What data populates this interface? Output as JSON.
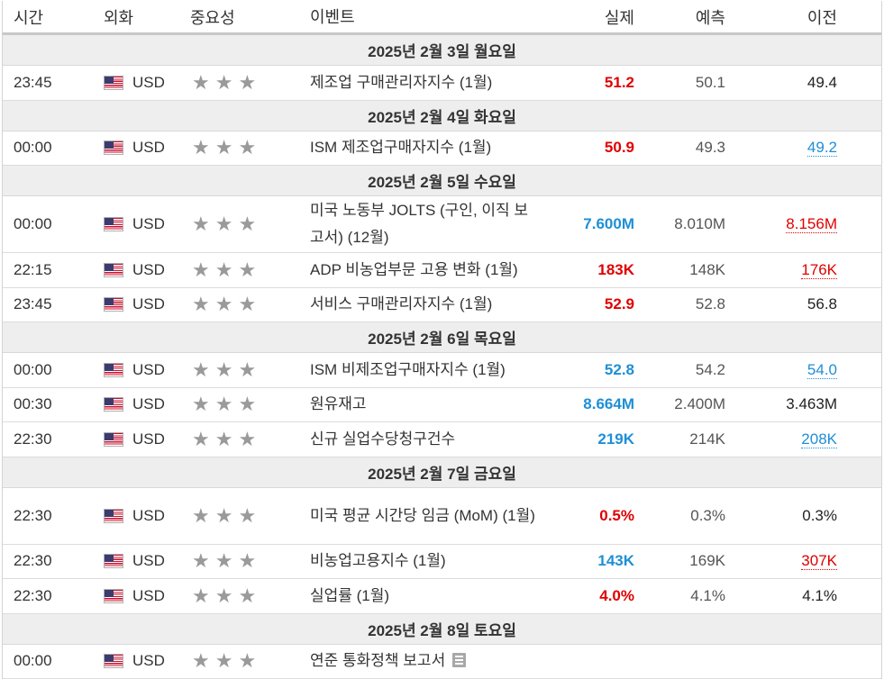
{
  "header": {
    "time": "시간",
    "currency": "외화",
    "importance": "중요성",
    "event": "이벤트",
    "actual": "실제",
    "forecast": "예측",
    "previous": "이전"
  },
  "colors": {
    "positive": "#1e8fd6",
    "negative": "#e00000",
    "day_bg": "#eeeeee"
  },
  "days": [
    {
      "label": "2025년 2월 3일 월요일",
      "events": [
        {
          "time": "23:45",
          "currency": "USD",
          "event": "제조업 구매관리자지수 (1월)",
          "actual": "51.2",
          "actual_color": "red",
          "forecast": "50.1",
          "previous": "49.4",
          "previous_style": "plain"
        }
      ]
    },
    {
      "label": "2025년 2월 4일 화요일",
      "events": [
        {
          "time": "00:00",
          "currency": "USD",
          "event": "ISM 제조업구매자지수 (1월)",
          "actual": "50.9",
          "actual_color": "red",
          "forecast": "49.3",
          "previous": "49.2",
          "previous_style": "blue"
        }
      ]
    },
    {
      "label": "2025년 2월 5일 수요일",
      "events": [
        {
          "time": "00:00",
          "currency": "USD",
          "event": "미국 노동부 JOLTS (구인, 이직 보고서) (12월)",
          "actual": "7.600M",
          "actual_color": "blue",
          "forecast": "8.010M",
          "previous": "8.156M",
          "previous_style": "red",
          "tall": true
        },
        {
          "time": "22:15",
          "currency": "USD",
          "event": "ADP 비농업부문 고용 변화 (1월)",
          "actual": "183K",
          "actual_color": "red",
          "forecast": "148K",
          "previous": "176K",
          "previous_style": "red"
        },
        {
          "time": "23:45",
          "currency": "USD",
          "event": "서비스 구매관리자지수 (1월)",
          "actual": "52.9",
          "actual_color": "red",
          "forecast": "52.8",
          "previous": "56.8",
          "previous_style": "plain"
        }
      ]
    },
    {
      "label": "2025년 2월 6일 목요일",
      "events": [
        {
          "time": "00:00",
          "currency": "USD",
          "event": "ISM 비제조업구매자지수 (1월)",
          "actual": "52.8",
          "actual_color": "blue",
          "forecast": "54.2",
          "previous": "54.0",
          "previous_style": "blue"
        },
        {
          "time": "00:30",
          "currency": "USD",
          "event": "원유재고",
          "actual": "8.664M",
          "actual_color": "blue",
          "forecast": "2.400M",
          "previous": "3.463M",
          "previous_style": "plain"
        },
        {
          "time": "22:30",
          "currency": "USD",
          "event": "신규 실업수당청구건수",
          "actual": "219K",
          "actual_color": "blue",
          "forecast": "214K",
          "previous": "208K",
          "previous_style": "blue"
        }
      ]
    },
    {
      "label": "2025년 2월 7일 금요일",
      "events": [
        {
          "time": "22:30",
          "currency": "USD",
          "event": "미국 평균 시간당 임금 (MoM) (1월)",
          "actual": "0.5%",
          "actual_color": "red",
          "forecast": "0.3%",
          "previous": "0.3%",
          "previous_style": "plain",
          "tall": true
        },
        {
          "time": "22:30",
          "currency": "USD",
          "event": "비농업고용지수 (1월)",
          "actual": "143K",
          "actual_color": "blue",
          "forecast": "169K",
          "previous": "307K",
          "previous_style": "red"
        },
        {
          "time": "22:30",
          "currency": "USD",
          "event": "실업률 (1월)",
          "actual": "4.0%",
          "actual_color": "red",
          "forecast": "4.1%",
          "previous": "4.1%",
          "previous_style": "plain"
        }
      ]
    },
    {
      "label": "2025년 2월 8일 토요일",
      "events": [
        {
          "time": "00:00",
          "currency": "USD",
          "event": "연준 통화정책 보고서",
          "actual": "",
          "actual_color": "none",
          "forecast": "",
          "previous": "",
          "previous_style": "plain",
          "has_report_icon": true
        }
      ]
    }
  ]
}
